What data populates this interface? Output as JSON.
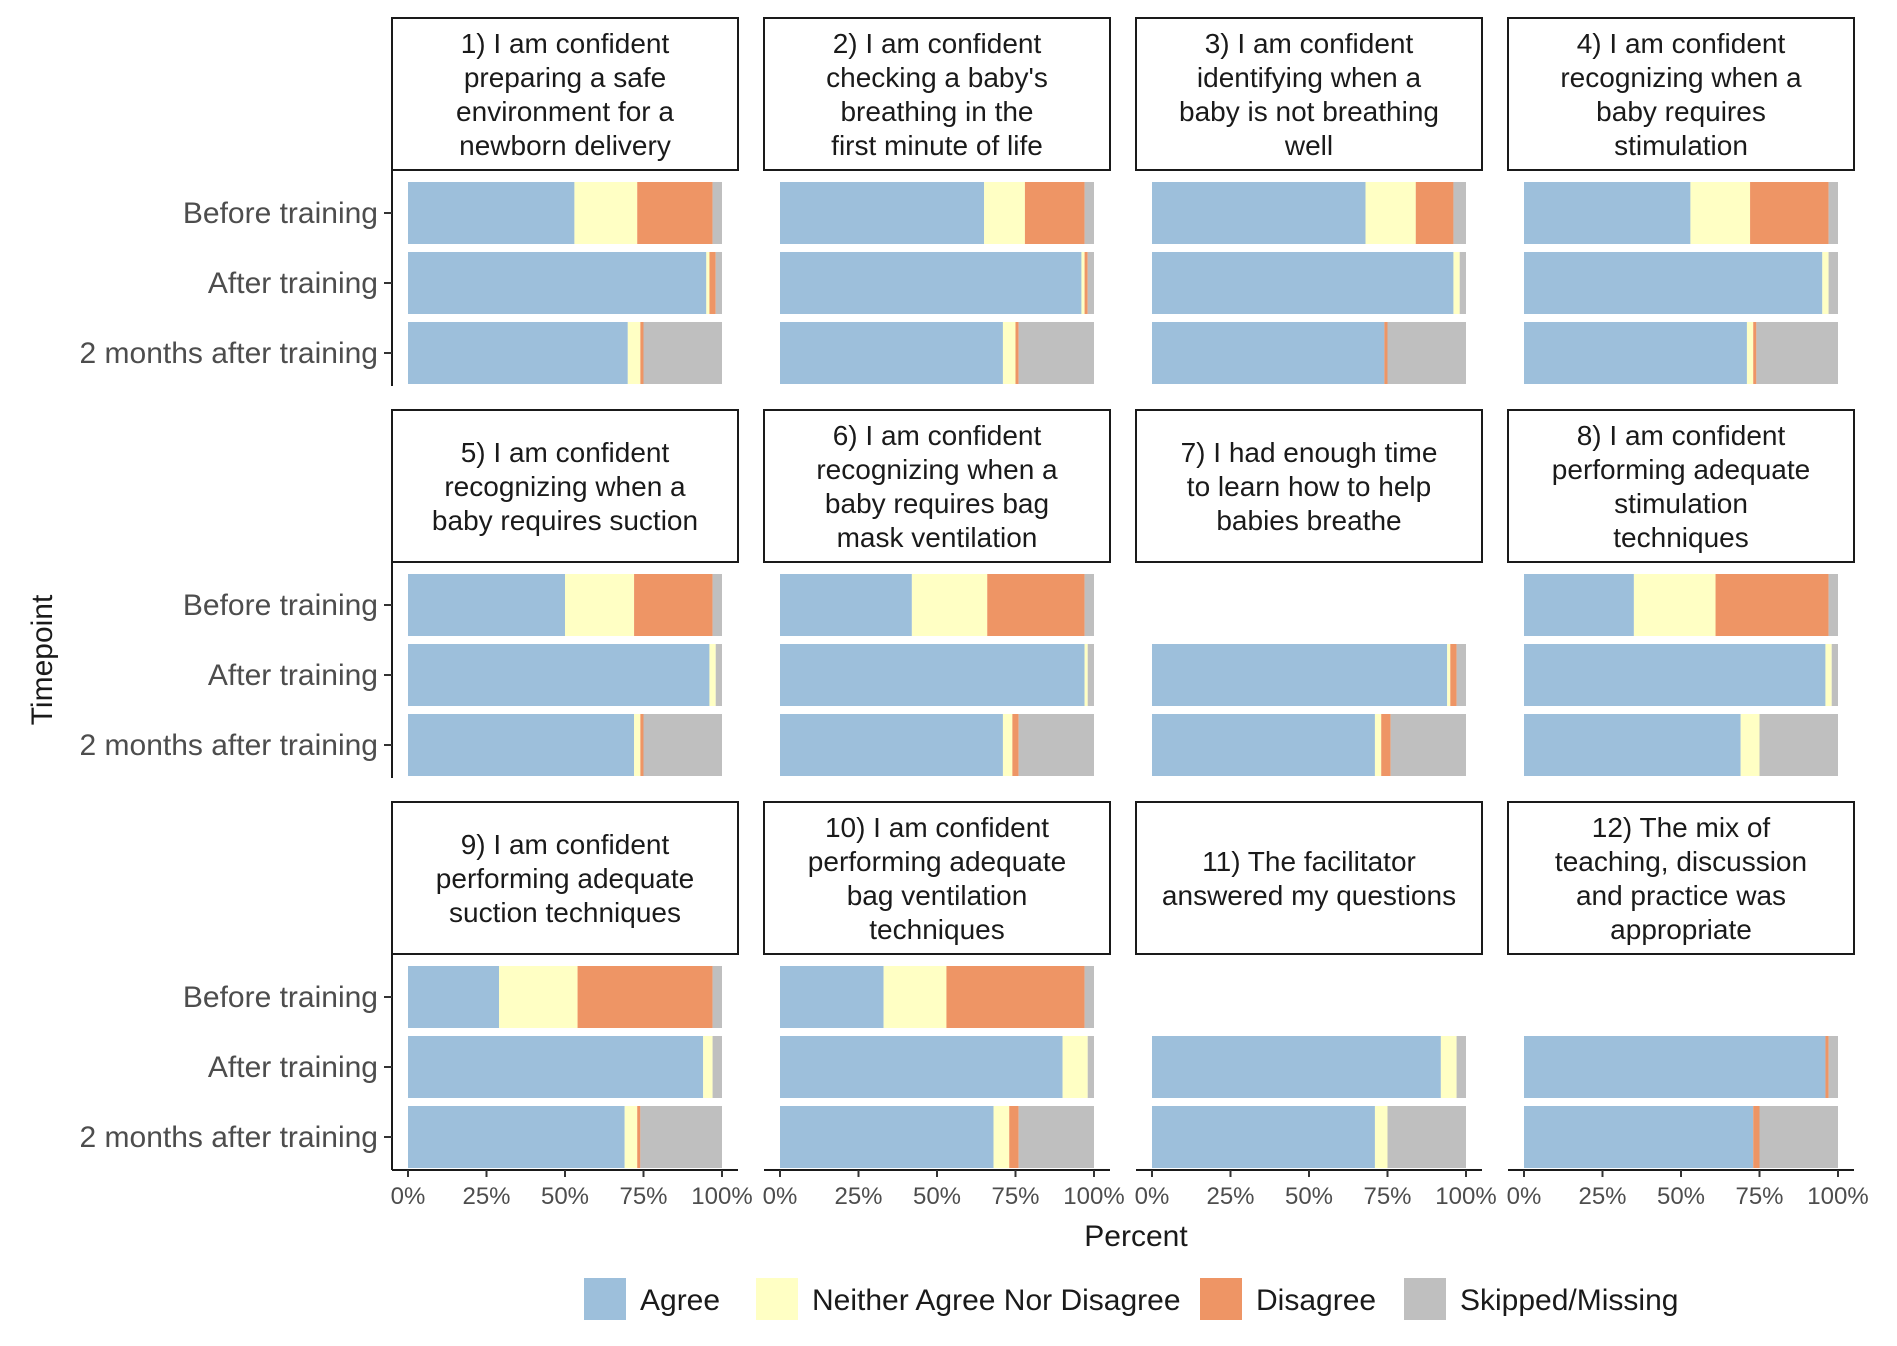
{
  "chart_data": {
    "type": "bar",
    "orientation": "horizontal",
    "stacked": true,
    "xlabel": "Percent",
    "ylabel": "Timepoint",
    "xlim": [
      0,
      1
    ],
    "xticks": [
      "0%",
      "25%",
      "50%",
      "75%",
      "100%"
    ],
    "timepoints": [
      "Before training",
      "After training",
      "2 months after training"
    ],
    "categories": [
      "Agree",
      "Neither Agree Nor Disagree",
      "Disagree",
      "Skipped/Missing"
    ],
    "colors": {
      "Agree": "#9dbfdb",
      "Neither Agree Nor Disagree": "#ffffc4",
      "Disagree": "#ee9565",
      "Skipped/Missing": "#bfbfbf"
    },
    "legend_position": "bottom",
    "grid": false,
    "panels": [
      {
        "title": [
          "1) I am confident",
          "preparing a safe",
          "environment for a",
          "newborn delivery"
        ],
        "values": [
          [
            0.53,
            0.2,
            0.24,
            0.03
          ],
          [
            0.95,
            0.01,
            0.02,
            0.02
          ],
          [
            0.7,
            0.04,
            0.01,
            0.25
          ]
        ]
      },
      {
        "title": [
          "2) I am confident",
          "checking a baby's",
          "breathing in the",
          "first minute of life"
        ],
        "values": [
          [
            0.65,
            0.13,
            0.19,
            0.03
          ],
          [
            0.96,
            0.01,
            0.01,
            0.02
          ],
          [
            0.71,
            0.04,
            0.01,
            0.24
          ]
        ]
      },
      {
        "title": [
          "3) I am confident",
          "identifying when a",
          "baby is not breathing",
          "well"
        ],
        "values": [
          [
            0.68,
            0.16,
            0.12,
            0.04
          ],
          [
            0.96,
            0.02,
            0.0,
            0.02
          ],
          [
            0.74,
            0.0,
            0.01,
            0.25
          ]
        ]
      },
      {
        "title": [
          "4) I am confident",
          "recognizing when a",
          "baby requires",
          "stimulation"
        ],
        "values": [
          [
            0.53,
            0.19,
            0.25,
            0.03
          ],
          [
            0.95,
            0.02,
            0.0,
            0.03
          ],
          [
            0.71,
            0.02,
            0.01,
            0.26
          ]
        ]
      },
      {
        "title": [
          "5) I am confident",
          "recognizing when a",
          "baby requires suction"
        ],
        "values": [
          [
            0.5,
            0.22,
            0.25,
            0.03
          ],
          [
            0.96,
            0.02,
            0.0,
            0.02
          ],
          [
            0.72,
            0.02,
            0.01,
            0.25
          ]
        ]
      },
      {
        "title": [
          "6) I am confident",
          "recognizing when a",
          "baby requires bag",
          "mask ventilation"
        ],
        "values": [
          [
            0.42,
            0.24,
            0.31,
            0.03
          ],
          [
            0.97,
            0.01,
            0.0,
            0.02
          ],
          [
            0.71,
            0.03,
            0.02,
            0.24
          ]
        ]
      },
      {
        "title": [
          "7) I had enough time",
          "to learn how to help",
          "babies breathe"
        ],
        "values": [
          null,
          [
            0.94,
            0.01,
            0.02,
            0.03
          ],
          [
            0.71,
            0.02,
            0.03,
            0.24
          ]
        ]
      },
      {
        "title": [
          "8) I am confident",
          "performing adequate",
          "stimulation",
          "techniques"
        ],
        "values": [
          [
            0.35,
            0.26,
            0.36,
            0.03
          ],
          [
            0.96,
            0.02,
            0.0,
            0.02
          ],
          [
            0.69,
            0.06,
            0.0,
            0.25
          ]
        ]
      },
      {
        "title": [
          "9) I am confident",
          "performing adequate",
          "suction techniques"
        ],
        "values": [
          [
            0.29,
            0.25,
            0.43,
            0.03
          ],
          [
            0.94,
            0.03,
            0.0,
            0.03
          ],
          [
            0.69,
            0.04,
            0.01,
            0.26
          ]
        ]
      },
      {
        "title": [
          "10) I am confident",
          "performing adequate",
          "bag ventilation",
          "techniques"
        ],
        "values": [
          [
            0.33,
            0.2,
            0.44,
            0.03
          ],
          [
            0.9,
            0.08,
            0.0,
            0.02
          ],
          [
            0.68,
            0.05,
            0.03,
            0.24
          ]
        ]
      },
      {
        "title": [
          "11) The facilitator",
          "answered my questions"
        ],
        "values": [
          null,
          [
            0.92,
            0.05,
            0.0,
            0.03
          ],
          [
            0.71,
            0.04,
            0.0,
            0.25
          ]
        ]
      },
      {
        "title": [
          "12) The mix of",
          "teaching, discussion",
          "and practice was",
          "appropriate"
        ],
        "values": [
          null,
          [
            0.96,
            0.0,
            0.01,
            0.03
          ],
          [
            0.73,
            0.0,
            0.02,
            0.25
          ]
        ]
      }
    ]
  }
}
